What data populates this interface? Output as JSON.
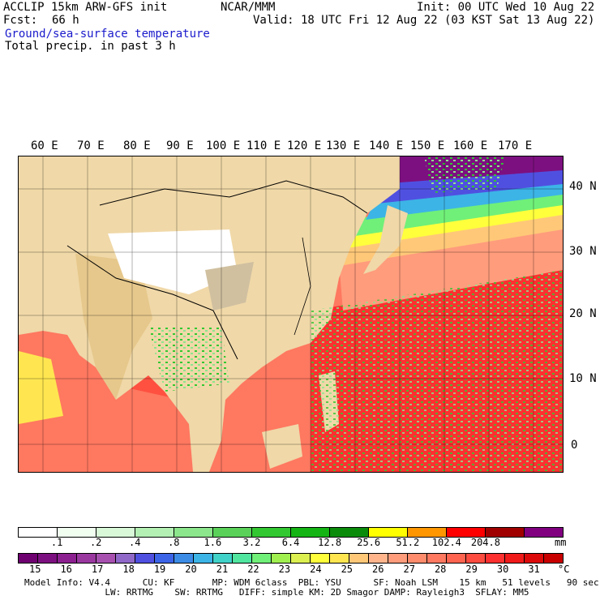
{
  "header": {
    "model": "ACCLIP 15km ARW-GFS init",
    "org": "NCAR/MMM",
    "init": "Init: 00 UTC Wed 10 Aug 22",
    "fcst_label": "Fcst:",
    "fcst_value": "66 h",
    "valid": "Valid: 18 UTC Fri 12 Aug 22 (03 KST Sat 13 Aug 22)",
    "field1": "Ground/sea-surface temperature",
    "field2": "Total precip. in past 3 h"
  },
  "map": {
    "lon_labels": [
      "60 E",
      "70 E",
      "80 E",
      "90 E",
      "100 E",
      "110 E",
      "120 E",
      "130 E",
      "140 E",
      "150 E",
      "160 E",
      "170 E"
    ],
    "lat_labels": [
      "40 N",
      "30 N",
      "20 N",
      "10 N",
      "0"
    ]
  },
  "precip_scale": {
    "labels": [
      ".1",
      ".2",
      ".4",
      ".8",
      "1.6",
      "3.2",
      "6.4",
      "12.8",
      "25.6",
      "51.2",
      "102.4",
      "204.8"
    ],
    "unit": "mm",
    "colors": [
      "#ffffff",
      "#f0fff0",
      "#d8f8d8",
      "#b4f0b4",
      "#8ce68c",
      "#5ad25a",
      "#32c832",
      "#14b414",
      "#0a8c0a",
      "#ffff00",
      "#ff9600",
      "#ff0000",
      "#a00000",
      "#800080"
    ]
  },
  "temp_scale": {
    "labels": [
      "15",
      "16",
      "17",
      "18",
      "19",
      "20",
      "21",
      "22",
      "23",
      "24",
      "25",
      "26",
      "27",
      "28",
      "29",
      "30",
      "31"
    ],
    "unit": "°C",
    "colors": [
      "#6e0070",
      "#7d1080",
      "#8c2090",
      "#9a38a0",
      "#a850b0",
      "#9068c8",
      "#5050e0",
      "#3c64e6",
      "#3c8ce6",
      "#3cb4e6",
      "#40d2c8",
      "#50e6a0",
      "#70f078",
      "#a0f050",
      "#dcf050",
      "#ffff3c",
      "#ffe650",
      "#ffc878",
      "#ffb48c",
      "#ff9c7c",
      "#ff8c6c",
      "#ff7860",
      "#ff6450",
      "#ff4c40",
      "#ff3030",
      "#f01a1a",
      "#dc0a0a",
      "#c80000"
    ]
  },
  "model_info": {
    "line1": "Model Info: V4.4      CU: KF       MP: WDM 6class  PBL: YSU      SF: Noah LSM    15 km   51 levels   90 sec",
    "line2": "               LW: RRTMG    SW: RRTMG   DIFF: simple KM: 2D Smagor DAMP: Rayleigh3  SFLAY: MM5"
  }
}
